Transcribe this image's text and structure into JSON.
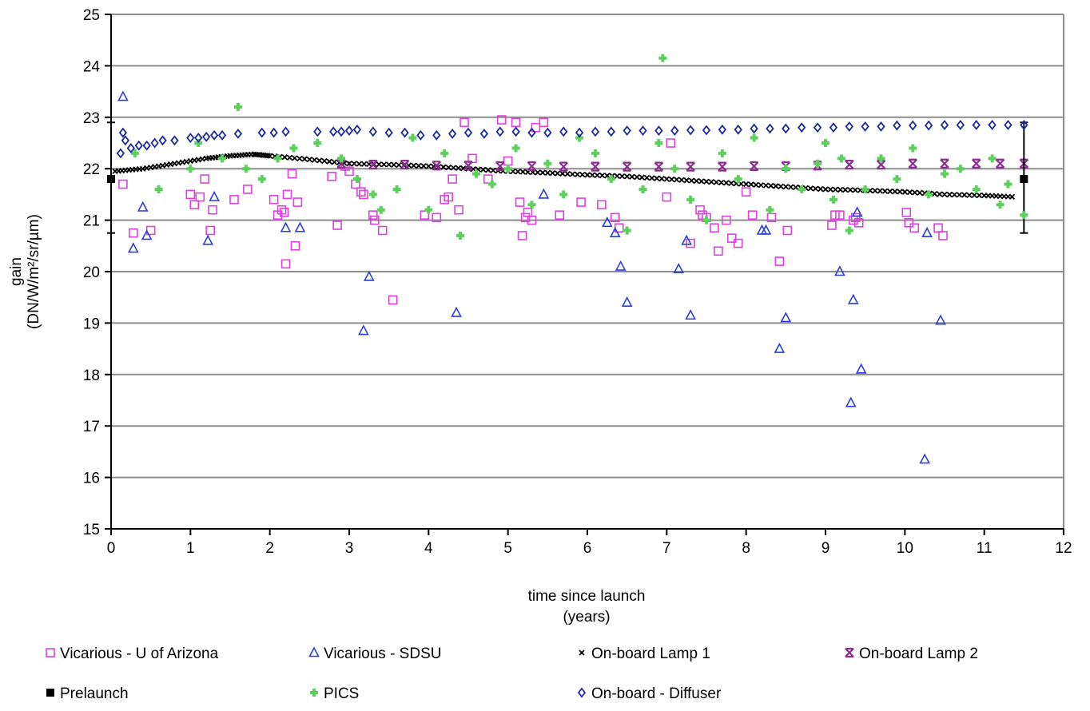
{
  "chart_data": {
    "type": "scatter",
    "title": "",
    "xlabel_line1": "time since launch",
    "xlabel_line2": "(years)",
    "ylabel_line1": "gain",
    "ylabel_line2": "(DN/W/m²/sr/µm)",
    "xlim": [
      0,
      12
    ],
    "ylim": [
      15,
      25
    ],
    "x_ticks": [
      "0",
      "1",
      "2",
      "3",
      "4",
      "5",
      "6",
      "7",
      "8",
      "9",
      "10",
      "11",
      "12"
    ],
    "y_ticks": [
      "15",
      "16",
      "17",
      "18",
      "19",
      "20",
      "21",
      "22",
      "23",
      "24",
      "25"
    ],
    "grid": "horizontal",
    "legend_position": "bottom",
    "series": [
      {
        "name": "Vicarious - U of Arizona",
        "marker": "square-open",
        "color": "#e040e0",
        "x": [
          0.15,
          0.28,
          0.5,
          1.0,
          1.05,
          1.12,
          1.18,
          1.25,
          1.28,
          1.55,
          1.72,
          2.05,
          2.1,
          2.15,
          2.18,
          2.2,
          2.22,
          2.28,
          2.32,
          2.35,
          2.78,
          2.85,
          2.95,
          3.0,
          3.08,
          3.15,
          3.18,
          3.3,
          3.32,
          3.42,
          3.55,
          3.95,
          4.1,
          4.2,
          4.25,
          4.3,
          4.38,
          4.45,
          4.55,
          4.75,
          4.92,
          5.0,
          5.1,
          5.15,
          5.18,
          5.22,
          5.25,
          5.3,
          5.35,
          5.45,
          5.65,
          5.92,
          6.18,
          6.35,
          6.4,
          7.0,
          7.05,
          7.3,
          7.42,
          7.45,
          7.5,
          7.6,
          7.65,
          7.75,
          7.82,
          7.9,
          8.0,
          8.08,
          8.32,
          8.42,
          8.52,
          9.08,
          9.12,
          9.18,
          9.35,
          9.38,
          9.42,
          10.02,
          10.05,
          10.12,
          10.42,
          10.48
        ],
        "y": [
          21.7,
          20.75,
          20.8,
          21.5,
          21.3,
          21.45,
          21.8,
          20.8,
          21.2,
          21.4,
          21.6,
          21.4,
          21.1,
          21.2,
          21.15,
          20.15,
          21.5,
          21.9,
          20.5,
          21.35,
          21.85,
          20.9,
          22.05,
          21.95,
          21.7,
          21.55,
          21.5,
          21.1,
          21.0,
          20.8,
          19.45,
          21.1,
          21.05,
          21.4,
          21.45,
          21.8,
          21.2,
          22.9,
          22.2,
          21.8,
          22.95,
          22.15,
          22.9,
          21.35,
          20.7,
          21.05,
          21.15,
          21.0,
          22.8,
          22.9,
          21.1,
          21.35,
          21.3,
          21.05,
          20.85,
          21.45,
          22.5,
          20.55,
          21.2,
          21.1,
          21.05,
          20.85,
          20.4,
          21.0,
          20.65,
          20.55,
          21.55,
          21.1,
          21.05,
          20.2,
          20.8,
          20.9,
          21.1,
          21.1,
          21.0,
          21.05,
          20.95,
          21.15,
          20.95,
          20.85,
          20.85,
          20.7
        ]
      },
      {
        "name": "Vicarious - SDSU",
        "marker": "triangle-open",
        "color": "#2a3fd8",
        "x": [
          0.15,
          0.28,
          0.4,
          0.45,
          1.22,
          1.3,
          2.2,
          2.38,
          3.18,
          3.25,
          4.35,
          5.45,
          6.25,
          6.35,
          6.42,
          6.5,
          7.15,
          7.25,
          7.3,
          8.2,
          8.25,
          8.42,
          8.5,
          9.18,
          9.32,
          9.35,
          9.4,
          9.45,
          10.25,
          10.28,
          10.45
        ],
        "y": [
          23.4,
          20.45,
          21.25,
          20.7,
          20.6,
          21.45,
          20.85,
          20.85,
          18.85,
          19.9,
          19.2,
          21.5,
          20.95,
          20.75,
          20.1,
          19.4,
          20.05,
          20.6,
          19.15,
          20.8,
          20.8,
          18.5,
          19.1,
          20.0,
          17.45,
          19.45,
          21.15,
          18.1,
          16.35,
          20.75,
          19.05
        ]
      },
      {
        "name": "On-board Lamp 1",
        "marker": "x-small",
        "color": "#000000",
        "x": [
          0.05,
          0.4,
          0.8,
          1.2,
          1.5,
          1.8,
          2.0,
          2.5,
          3.0,
          3.5,
          4.0,
          4.5,
          5.0,
          5.5,
          6.0,
          6.5,
          7.0,
          7.5,
          8.0,
          8.5,
          9.0,
          9.5,
          10.0,
          10.5,
          11.0,
          11.4
        ],
        "y": [
          21.95,
          22.0,
          22.1,
          22.2,
          22.25,
          22.28,
          22.25,
          22.18,
          22.1,
          22.08,
          22.05,
          22.0,
          21.95,
          21.92,
          21.88,
          21.85,
          21.8,
          21.75,
          21.7,
          21.65,
          21.6,
          21.58,
          21.55,
          21.5,
          21.48,
          21.45
        ]
      },
      {
        "name": "On-board Lamp 2",
        "marker": "x-bold",
        "color": "#8a2e90",
        "x": [
          2.9,
          3.3,
          3.7,
          4.1,
          4.5,
          4.9,
          5.3,
          5.7,
          6.1,
          6.5,
          6.9,
          7.3,
          7.7,
          8.1,
          8.5,
          8.9,
          9.3,
          9.7,
          10.1,
          10.5,
          10.9,
          11.2,
          11.5
        ],
        "y": [
          22.1,
          22.08,
          22.08,
          22.06,
          22.06,
          22.05,
          22.05,
          22.04,
          22.04,
          22.04,
          22.04,
          22.04,
          22.04,
          22.05,
          22.05,
          22.06,
          22.08,
          22.08,
          22.1,
          22.1,
          22.1,
          22.1,
          22.1
        ]
      },
      {
        "name": "Prelaunch",
        "marker": "square-filled-errorbar",
        "color": "#000000",
        "x": [
          0.0,
          11.5
        ],
        "y": [
          21.8,
          21.8
        ],
        "error_low": [
          20.75,
          20.75
        ],
        "error_high": [
          22.9,
          22.9
        ]
      },
      {
        "name": "PICS",
        "marker": "plus-filled",
        "color": "#5ccf5c",
        "x": [
          0.3,
          0.6,
          1.0,
          1.1,
          1.4,
          1.6,
          1.7,
          1.9,
          2.1,
          2.3,
          2.6,
          2.9,
          3.1,
          3.3,
          3.4,
          3.6,
          3.8,
          4.0,
          4.2,
          4.4,
          4.6,
          4.8,
          5.0,
          5.1,
          5.3,
          5.5,
          5.7,
          5.9,
          6.1,
          6.3,
          6.5,
          6.7,
          6.9,
          6.95,
          7.1,
          7.3,
          7.5,
          7.7,
          7.9,
          8.1,
          8.3,
          8.5,
          8.7,
          8.9,
          9.0,
          9.1,
          9.2,
          9.3,
          9.5,
          9.7,
          9.9,
          10.1,
          10.3,
          10.5,
          10.7,
          10.9,
          11.1,
          11.2,
          11.3,
          11.5
        ],
        "y": [
          22.3,
          21.6,
          22.0,
          22.5,
          22.2,
          23.2,
          22.0,
          21.8,
          22.2,
          22.4,
          22.5,
          22.2,
          21.8,
          21.5,
          21.2,
          21.6,
          22.6,
          21.2,
          22.3,
          20.7,
          21.9,
          21.7,
          22.0,
          22.4,
          21.3,
          22.1,
          21.5,
          22.6,
          22.3,
          21.8,
          20.8,
          21.6,
          22.5,
          24.15,
          22.0,
          21.4,
          21.0,
          22.3,
          21.8,
          22.6,
          21.2,
          22.0,
          21.6,
          22.1,
          22.5,
          21.4,
          22.2,
          20.8,
          21.6,
          22.2,
          21.8,
          22.4,
          21.5,
          21.9,
          22.0,
          21.6,
          22.2,
          21.3,
          21.7,
          21.1
        ]
      },
      {
        "name": "On-board - Diffuser",
        "marker": "diamond-open",
        "color": "#1a2a9a",
        "x": [
          0.12,
          0.15,
          0.18,
          0.25,
          0.35,
          0.45,
          0.55,
          0.65,
          0.8,
          1.0,
          1.1,
          1.2,
          1.3,
          1.4,
          1.6,
          1.9,
          2.05,
          2.2,
          2.6,
          2.8,
          2.9,
          3.0,
          3.1,
          3.3,
          3.5,
          3.7,
          3.9,
          4.1,
          4.3,
          4.5,
          4.7,
          4.9,
          5.1,
          5.3,
          5.5,
          5.7,
          5.9,
          6.1,
          6.3,
          6.5,
          6.7,
          6.9,
          7.1,
          7.3,
          7.5,
          7.7,
          7.9,
          8.1,
          8.3,
          8.5,
          8.7,
          8.9,
          9.1,
          9.3,
          9.5,
          9.7,
          9.9,
          10.1,
          10.3,
          10.5,
          10.7,
          10.9,
          11.1,
          11.3,
          11.5
        ],
        "y": [
          22.3,
          22.7,
          22.55,
          22.4,
          22.45,
          22.45,
          22.5,
          22.55,
          22.55,
          22.6,
          22.6,
          22.62,
          22.65,
          22.65,
          22.68,
          22.7,
          22.7,
          22.72,
          22.72,
          22.72,
          22.72,
          22.74,
          22.76,
          22.72,
          22.7,
          22.7,
          22.65,
          22.65,
          22.68,
          22.7,
          22.68,
          22.72,
          22.72,
          22.7,
          22.7,
          22.72,
          22.7,
          22.72,
          22.72,
          22.74,
          22.74,
          22.74,
          22.74,
          22.75,
          22.75,
          22.76,
          22.76,
          22.78,
          22.78,
          22.78,
          22.8,
          22.8,
          22.8,
          22.82,
          22.82,
          22.82,
          22.84,
          22.84,
          22.84,
          22.85,
          22.85,
          22.85,
          22.85,
          22.85,
          22.85
        ]
      }
    ]
  },
  "legend": {
    "items": [
      {
        "label": "Vicarious - U of Arizona",
        "marker": "square-open",
        "color": "#e040e0"
      },
      {
        "label": "Vicarious - SDSU",
        "marker": "triangle-open",
        "color": "#2a3fd8"
      },
      {
        "label": "On-board Lamp 1",
        "marker": "x-small",
        "color": "#000000"
      },
      {
        "label": "On-board Lamp 2",
        "marker": "x-bold",
        "color": "#8a2e90"
      },
      {
        "label": "Prelaunch",
        "marker": "square-filled",
        "color": "#000000"
      },
      {
        "label": "PICS",
        "marker": "plus-filled",
        "color": "#5ccf5c"
      },
      {
        "label": "On-board - Diffuser",
        "marker": "diamond-open",
        "color": "#1a2a9a"
      }
    ]
  },
  "gridline_color": "#8c8c8c"
}
